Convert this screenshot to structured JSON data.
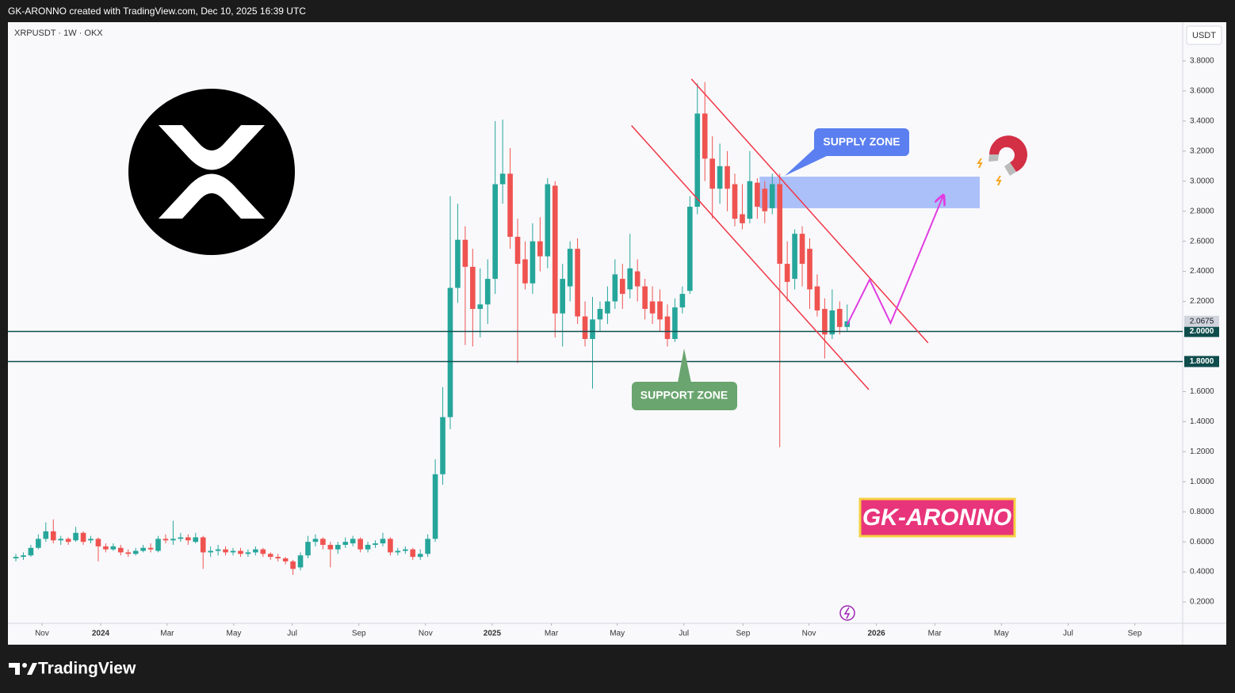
{
  "header": {
    "caption": "GK-ARONNO created with TradingView.com, Dec 10, 2025 16:39 UTC"
  },
  "footer": {
    "brand": "TradingView"
  },
  "chart_data": {
    "type": "candlestick",
    "symbol": "XRPUSDT · 1W · OKX",
    "currency": "USDT",
    "up_color": "#26a69a",
    "down_color": "#ef5350",
    "open": [
      0.49,
      0.5,
      0.51,
      0.56,
      0.62,
      0.67,
      0.61,
      0.62,
      0.61,
      0.66,
      0.61,
      0.62,
      0.57,
      0.55,
      0.56,
      0.53,
      0.52,
      0.54,
      0.56,
      0.54,
      0.62,
      0.61,
      0.62,
      0.63,
      0.6,
      0.63,
      0.53,
      0.54,
      0.55,
      0.53,
      0.54,
      0.52,
      0.53,
      0.55,
      0.52,
      0.5,
      0.49,
      0.47,
      0.43,
      0.51,
      0.6,
      0.62,
      0.58,
      0.55,
      0.58,
      0.59,
      0.62,
      0.55,
      0.58,
      0.59,
      0.62,
      0.53,
      0.54,
      0.55,
      0.5,
      0.52,
      0.62,
      1.05,
      1.43,
      2.29,
      2.61,
      2.43,
      2.15,
      2.18,
      2.35,
      2.98,
      3.05,
      2.63,
      2.48,
      2.32,
      2.6,
      2.5,
      2.97,
      2.12,
      2.3,
      2.55,
      2.1,
      1.95,
      2.08,
      2.12,
      2.2,
      2.35,
      2.28,
      2.4,
      2.3,
      2.2,
      2.2,
      2.1,
      1.95,
      2.16,
      2.27,
      2.83,
      3.45,
      3.15,
      2.95,
      3.1,
      2.98,
      2.78,
      2.75,
      2.99,
      2.95,
      2.82,
      2.98,
      2.45,
      2.35,
      2.65,
      2.55,
      2.3,
      2.15,
      1.98,
      2.15,
      2.03
    ],
    "high": [
      0.52,
      0.53,
      0.58,
      0.65,
      0.73,
      0.75,
      0.64,
      0.63,
      0.7,
      0.67,
      0.64,
      0.63,
      0.59,
      0.59,
      0.58,
      0.55,
      0.56,
      0.58,
      0.59,
      0.64,
      0.65,
      0.74,
      0.66,
      0.65,
      0.66,
      0.64,
      0.57,
      0.58,
      0.57,
      0.56,
      0.56,
      0.55,
      0.57,
      0.56,
      0.53,
      0.52,
      0.5,
      0.48,
      0.53,
      0.64,
      0.65,
      0.63,
      0.6,
      0.6,
      0.63,
      0.64,
      0.63,
      0.6,
      0.61,
      0.66,
      0.63,
      0.56,
      0.57,
      0.56,
      0.55,
      0.65,
      1.15,
      1.63,
      2.9,
      2.85,
      2.7,
      2.55,
      2.42,
      2.48,
      3.4,
      3.41,
      3.22,
      2.75,
      2.6,
      2.72,
      2.76,
      3.02,
      3.0,
      2.45,
      2.6,
      2.62,
      2.2,
      2.23,
      2.2,
      2.3,
      2.48,
      2.45,
      2.65,
      2.48,
      2.35,
      2.3,
      2.28,
      2.18,
      2.22,
      2.3,
      2.9,
      3.65,
      3.66,
      3.3,
      3.25,
      3.2,
      3.05,
      2.98,
      3.2,
      3.02,
      3.0,
      3.05,
      3.05,
      2.6,
      2.68,
      2.7,
      2.62,
      2.38,
      2.22,
      2.28,
      2.2,
      2.18
    ],
    "low": [
      0.47,
      0.48,
      0.5,
      0.55,
      0.6,
      0.59,
      0.58,
      0.58,
      0.6,
      0.58,
      0.59,
      0.47,
      0.53,
      0.54,
      0.51,
      0.5,
      0.51,
      0.53,
      0.53,
      0.53,
      0.59,
      0.58,
      0.6,
      0.58,
      0.59,
      0.42,
      0.5,
      0.51,
      0.51,
      0.51,
      0.5,
      0.5,
      0.51,
      0.5,
      0.48,
      0.47,
      0.45,
      0.38,
      0.41,
      0.49,
      0.57,
      0.55,
      0.43,
      0.52,
      0.56,
      0.57,
      0.53,
      0.53,
      0.56,
      0.57,
      0.51,
      0.51,
      0.52,
      0.48,
      0.48,
      0.5,
      0.6,
      0.98,
      1.35,
      2.19,
      1.91,
      1.9,
      1.96,
      2.05,
      2.25,
      2.85,
      2.55,
      1.79,
      2.28,
      2.25,
      2.4,
      2.42,
      1.96,
      1.9,
      2.2,
      2.05,
      1.9,
      1.62,
      2.0,
      2.05,
      2.15,
      2.15,
      2.22,
      2.2,
      2.08,
      2.05,
      2.0,
      1.9,
      1.93,
      2.12,
      2.25,
      2.78,
      3.0,
      2.75,
      2.85,
      2.8,
      2.7,
      2.68,
      2.72,
      2.75,
      2.72,
      2.78,
      1.23,
      2.2,
      2.28,
      2.3,
      2.15,
      2.1,
      1.82,
      1.95,
      1.98,
      2.0
    ],
    "close": [
      0.5,
      0.51,
      0.56,
      0.62,
      0.67,
      0.61,
      0.62,
      0.6,
      0.66,
      0.6,
      0.62,
      0.57,
      0.55,
      0.57,
      0.53,
      0.52,
      0.54,
      0.56,
      0.55,
      0.62,
      0.61,
      0.62,
      0.63,
      0.61,
      0.63,
      0.53,
      0.54,
      0.55,
      0.53,
      0.54,
      0.52,
      0.53,
      0.55,
      0.52,
      0.5,
      0.49,
      0.47,
      0.42,
      0.51,
      0.6,
      0.62,
      0.58,
      0.55,
      0.58,
      0.6,
      0.62,
      0.55,
      0.58,
      0.59,
      0.62,
      0.53,
      0.54,
      0.55,
      0.5,
      0.52,
      0.62,
      1.05,
      1.43,
      2.29,
      2.61,
      2.43,
      2.15,
      2.18,
      2.35,
      2.98,
      3.05,
      2.63,
      2.45,
      2.32,
      2.6,
      2.5,
      2.98,
      2.12,
      2.35,
      2.55,
      2.1,
      1.95,
      2.08,
      2.15,
      2.2,
      2.38,
      2.25,
      2.42,
      2.3,
      2.15,
      2.12,
      2.08,
      1.95,
      2.16,
      2.25,
      2.83,
      3.45,
      3.15,
      2.95,
      3.1,
      2.95,
      2.75,
      2.72,
      3.0,
      2.83,
      2.8,
      2.98,
      2.45,
      2.33,
      2.65,
      2.45,
      2.28,
      2.14,
      1.98,
      2.14,
      2.03,
      2.0675
    ],
    "xlim": [
      -1.06,
      155.8
    ],
    "xticks": [
      {
        "value": 3.49,
        "label": "Nov"
      },
      {
        "value": 11.32,
        "label": "2024"
      },
      {
        "value": 20.2,
        "label": "Mar"
      },
      {
        "value": 29.1,
        "label": "May"
      },
      {
        "value": 36.9,
        "label": "Jul"
      },
      {
        "value": 45.8,
        "label": "Sep"
      },
      {
        "value": 54.7,
        "label": "Nov"
      },
      {
        "value": 63.6,
        "label": "2025"
      },
      {
        "value": 71.5,
        "label": "Mar"
      },
      {
        "value": 80.3,
        "label": "May"
      },
      {
        "value": 89.2,
        "label": "Jul"
      },
      {
        "value": 97.1,
        "label": "Sep"
      },
      {
        "value": 105.9,
        "label": "Nov"
      },
      {
        "value": 114.9,
        "label": "2026"
      },
      {
        "value": 122.7,
        "label": "Mar"
      },
      {
        "value": 131.6,
        "label": "May"
      },
      {
        "value": 140.5,
        "label": "Jul"
      },
      {
        "value": 149.4,
        "label": "Sep"
      }
    ],
    "ylim": [
      0.058,
      4.058
    ],
    "yticks": [
      {
        "value": 0.2,
        "label": "0.2000"
      },
      {
        "value": 0.4,
        "label": "0.4000"
      },
      {
        "value": 0.6,
        "label": "0.6000"
      },
      {
        "value": 0.8,
        "label": "0.8000"
      },
      {
        "value": 1.0,
        "label": "1.0000"
      },
      {
        "value": 1.2,
        "label": "1.2000"
      },
      {
        "value": 1.4,
        "label": "1.4000"
      },
      {
        "value": 1.6,
        "label": "1.6000"
      },
      {
        "value": 2.2,
        "label": "2.2000"
      },
      {
        "value": 2.4,
        "label": "2.4000"
      },
      {
        "value": 2.6,
        "label": "2.6000"
      },
      {
        "value": 2.8,
        "label": "2.8000"
      },
      {
        "value": 3.0,
        "label": "3.0000"
      },
      {
        "value": 3.2,
        "label": "3.2000"
      },
      {
        "value": 3.4,
        "label": "3.4000"
      },
      {
        "value": 3.6,
        "label": "3.6000"
      },
      {
        "value": 3.8,
        "label": "3.8000"
      }
    ],
    "horizontal_lines": [
      {
        "value": 2.0,
        "label": "2.0000"
      },
      {
        "value": 1.8,
        "label": "1.8000"
      }
    ],
    "last_price": {
      "value": 2.0675,
      "label": "2.0675"
    },
    "channel": [
      {
        "from": [
          90.2,
          3.68
        ],
        "to": [
          121.8,
          1.924
        ]
      },
      {
        "from": [
          82.2,
          3.37
        ],
        "to": [
          113.9,
          1.613
        ]
      }
    ],
    "projection": {
      "x": [
        111,
        114,
        116.8,
        123.8
      ],
      "y": [
        2.045,
        2.345,
        2.056,
        2.9
      ]
    },
    "supply_zone": {
      "label": "SUPPLY ZONE",
      "xlim": [
        99.3,
        128.7
      ],
      "ylim": [
        2.82,
        3.03
      ]
    },
    "support_zone": {
      "label": "SUPPORT ZONE"
    },
    "watermark": "GK-ARONNO"
  }
}
